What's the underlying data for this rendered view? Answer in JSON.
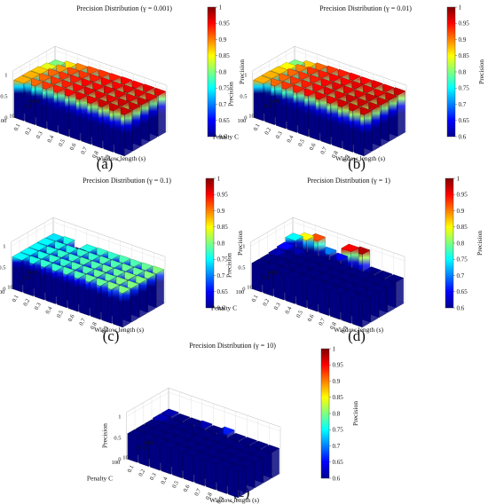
{
  "chart_data": [
    {
      "type": "bar3d",
      "panel_label": "(a)",
      "title": "Precision Distribution (γ = 0.001)",
      "xlabel": "Penalty C",
      "ylabel": "Window length (s)",
      "zlabel": "Precision",
      "colorbar_label": "Precision",
      "penalty_c": [
        "0.01",
        "0.1",
        "1",
        "10",
        "100"
      ],
      "window_length": [
        "0.1",
        "0.2",
        "0.3",
        "0.4",
        "0.5",
        "0.6",
        "0.7",
        "0.8",
        "0.9",
        "1"
      ],
      "z_ticks": [
        "0",
        "0.5",
        "1"
      ],
      "colorbar_ticks": [
        "0.6",
        "0.65",
        "0.7",
        "0.75",
        "0.8",
        "0.85",
        "0.9",
        "0.95",
        "1"
      ],
      "clim": [
        0.6,
        1
      ],
      "values": [
        [
          0.8,
          0.86,
          0.9,
          0.92,
          0.93,
          0.94,
          0.95,
          0.95,
          0.96,
          0.96
        ],
        [
          0.84,
          0.89,
          0.92,
          0.93,
          0.94,
          0.95,
          0.95,
          0.96,
          0.96,
          0.96
        ],
        [
          0.87,
          0.91,
          0.93,
          0.94,
          0.95,
          0.95,
          0.96,
          0.96,
          0.96,
          0.97
        ],
        [
          0.88,
          0.91,
          0.93,
          0.94,
          0.95,
          0.96,
          0.96,
          0.96,
          0.97,
          0.97
        ],
        [
          0.88,
          0.91,
          0.93,
          0.94,
          0.95,
          0.96,
          0.96,
          0.97,
          0.97,
          0.97
        ]
      ]
    },
    {
      "type": "bar3d",
      "panel_label": "(b)",
      "title": "Precision Distribution (γ = 0.01)",
      "xlabel": "Penalty C",
      "ylabel": "Window length (s)",
      "zlabel": "Precision",
      "colorbar_label": "Precision",
      "penalty_c": [
        "0.01",
        "0.1",
        "1",
        "10",
        "100"
      ],
      "window_length": [
        "0.1",
        "0.2",
        "0.3",
        "0.4",
        "0.5",
        "0.6",
        "0.7",
        "0.8",
        "0.9",
        "1"
      ],
      "z_ticks": [
        "0",
        "0.5",
        "1"
      ],
      "colorbar_ticks": [
        "0.6",
        "0.65",
        "0.7",
        "0.75",
        "0.8",
        "0.85",
        "0.9",
        "0.95",
        "1"
      ],
      "clim": [
        0.6,
        1
      ],
      "values": [
        [
          0.8,
          0.87,
          0.91,
          0.93,
          0.94,
          0.95,
          0.95,
          0.96,
          0.96,
          0.97
        ],
        [
          0.85,
          0.9,
          0.93,
          0.94,
          0.95,
          0.95,
          0.96,
          0.96,
          0.96,
          0.97
        ],
        [
          0.87,
          0.91,
          0.93,
          0.94,
          0.95,
          0.96,
          0.96,
          0.96,
          0.97,
          0.97
        ],
        [
          0.88,
          0.91,
          0.93,
          0.94,
          0.95,
          0.96,
          0.96,
          0.97,
          0.97,
          0.97
        ],
        [
          0.88,
          0.91,
          0.93,
          0.94,
          0.95,
          0.96,
          0.96,
          0.97,
          0.97,
          0.97
        ]
      ]
    },
    {
      "type": "bar3d",
      "panel_label": "(c)",
      "title": "Precision Distribution (γ = 0.1)",
      "xlabel": "Penalty C",
      "ylabel": "Window length (s)",
      "zlabel": "Precision",
      "colorbar_label": "Precision",
      "penalty_c": [
        "0.01",
        "0.1",
        "1",
        "10",
        "100"
      ],
      "window_length": [
        "0.1",
        "0.2",
        "0.3",
        "0.4",
        "0.5",
        "0.6",
        "0.7",
        "0.8",
        "0.9",
        "1"
      ],
      "z_ticks": [
        "0",
        "0.5",
        "1"
      ],
      "colorbar_ticks": [
        "0.6",
        "0.65",
        "0.7",
        "0.75",
        "0.8",
        "0.85",
        "0.9",
        "0.95",
        "1"
      ],
      "clim": [
        0.6,
        1
      ],
      "values": [
        [
          0.74,
          0.76,
          0.6,
          0.76,
          0.77,
          0.77,
          0.78,
          0.78,
          0.79,
          0.8
        ],
        [
          0.75,
          0.76,
          0.76,
          0.77,
          0.77,
          0.78,
          0.78,
          0.79,
          0.79,
          0.8
        ],
        [
          0.75,
          0.76,
          0.77,
          0.77,
          0.78,
          0.78,
          0.79,
          0.79,
          0.8,
          0.8
        ],
        [
          0.75,
          0.76,
          0.77,
          0.77,
          0.78,
          0.78,
          0.79,
          0.79,
          0.8,
          0.8
        ],
        [
          0.75,
          0.76,
          0.77,
          0.77,
          0.78,
          0.78,
          0.79,
          0.79,
          0.8,
          0.8
        ]
      ]
    },
    {
      "type": "bar3d",
      "panel_label": "(d)",
      "title": "Precision Distribution (γ = 1)",
      "xlabel": "Penalty C",
      "ylabel": "Window length (s)",
      "zlabel": "Precision",
      "colorbar_label": "Precision",
      "penalty_c": [
        "0.01",
        "0.1",
        "1",
        "10",
        "100"
      ],
      "window_length": [
        "0.1",
        "0.2",
        "0.3",
        "0.4",
        "0.5",
        "0.6",
        "0.7",
        "0.8",
        "0.9",
        "1"
      ],
      "z_ticks": [
        "0",
        "0.5",
        "1"
      ],
      "colorbar_ticks": [
        "0.6",
        "0.65",
        "0.7",
        "0.75",
        "0.8",
        "0.85",
        "0.9",
        "0.95",
        "1"
      ],
      "clim": [
        0.6,
        1
      ],
      "values": [
        [
          0.75,
          0.85,
          0.92,
          0.7,
          0.65,
          0.95,
          0.98,
          0.6,
          0.6,
          0.6
        ],
        [
          0.65,
          0.62,
          0.6,
          0.6,
          0.6,
          0.6,
          0.6,
          0.6,
          0.6,
          0.6
        ],
        [
          0.62,
          0.6,
          0.6,
          0.6,
          0.6,
          0.6,
          0.6,
          0.6,
          0.6,
          0.6
        ],
        [
          0.6,
          0.6,
          0.6,
          0.6,
          0.6,
          0.6,
          0.6,
          0.6,
          0.6,
          0.6
        ],
        [
          0.6,
          0.6,
          0.6,
          0.6,
          0.6,
          0.6,
          0.6,
          0.6,
          0.6,
          0.6
        ]
      ]
    },
    {
      "type": "bar3d",
      "panel_label": "(e)",
      "title": "Precision Distribution (γ = 10)",
      "xlabel": "Penalty C",
      "ylabel": "Window length (s)",
      "zlabel": "Precision",
      "colorbar_label": "Precision",
      "penalty_c": [
        "0.01",
        "0.1",
        "1",
        "10",
        "100"
      ],
      "window_length": [
        "0.1",
        "0.2",
        "0.3",
        "0.4",
        "0.5",
        "0.6",
        "0.7",
        "0.8",
        "0.9",
        "1"
      ],
      "z_ticks": [
        "0",
        "0.5",
        "1"
      ],
      "colorbar_ticks": [
        "0.6",
        "0.65",
        "0.7",
        "0.75",
        "0.8",
        "0.85",
        "0.9",
        "0.95",
        "1"
      ],
      "clim": [
        0.6,
        1
      ],
      "values": [
        [
          0.62,
          0.6,
          0.6,
          0.62,
          0.6,
          0.66,
          0.6,
          0.6,
          0.6,
          0.6
        ],
        [
          0.62,
          0.6,
          0.6,
          0.6,
          0.6,
          0.6,
          0.6,
          0.6,
          0.6,
          0.6
        ],
        [
          0.6,
          0.6,
          0.6,
          0.6,
          0.6,
          0.6,
          0.6,
          0.6,
          0.6,
          0.6
        ],
        [
          0.6,
          0.6,
          0.6,
          0.6,
          0.6,
          0.6,
          0.6,
          0.6,
          0.6,
          0.6
        ],
        [
          0.6,
          0.6,
          0.6,
          0.6,
          0.6,
          0.6,
          0.6,
          0.6,
          0.6,
          0.6
        ]
      ]
    }
  ]
}
